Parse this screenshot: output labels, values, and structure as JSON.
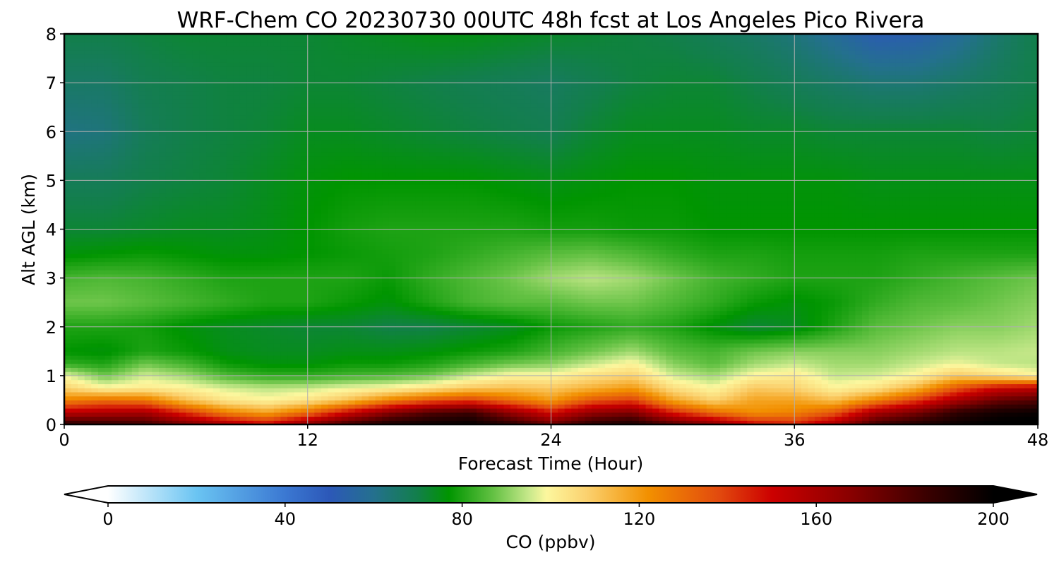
{
  "chart_data": {
    "type": "heatmap",
    "title": "WRF-Chem CO  20230730 00UTC 48h fcst at Los Angeles Pico Rivera",
    "xlabel": "Forecast Time (Hour)",
    "ylabel": "Alt AGL (km)",
    "xlim": [
      0,
      48
    ],
    "ylim": [
      0,
      8
    ],
    "xticks": [
      "0",
      "12",
      "24",
      "36",
      "48"
    ],
    "yticks": [
      "0",
      "1",
      "2",
      "3",
      "4",
      "5",
      "6",
      "7",
      "8"
    ],
    "grid": true,
    "colorbar": {
      "label": "CO  (ppbv)",
      "range": [
        0,
        200
      ],
      "ticks": [
        "0",
        "40",
        "80",
        "120",
        "160",
        "200"
      ],
      "extend": "both",
      "stops": [
        {
          "v": 0,
          "c": "#ffffff"
        },
        {
          "v": 20,
          "c": "#6ac4f2"
        },
        {
          "v": 40,
          "c": "#3b78d2"
        },
        {
          "v": 50,
          "c": "#2c58b8"
        },
        {
          "v": 60,
          "c": "#24708e"
        },
        {
          "v": 70,
          "c": "#127f4a"
        },
        {
          "v": 77,
          "c": "#009500"
        },
        {
          "v": 87,
          "c": "#63c143"
        },
        {
          "v": 95,
          "c": "#c6e88a"
        },
        {
          "v": 99,
          "c": "#fcf79e"
        },
        {
          "v": 108,
          "c": "#fbd270"
        },
        {
          "v": 122,
          "c": "#f29000"
        },
        {
          "v": 138,
          "c": "#e24a0e"
        },
        {
          "v": 150,
          "c": "#cc0000"
        },
        {
          "v": 168,
          "c": "#880000"
        },
        {
          "v": 185,
          "c": "#3a0000"
        },
        {
          "v": 200,
          "c": "#000000"
        }
      ]
    },
    "times_h": [
      0,
      2,
      4,
      6,
      8,
      10,
      12,
      14,
      16,
      18,
      20,
      22,
      24,
      26,
      28,
      30,
      32,
      34,
      36,
      38,
      40,
      42,
      44,
      46,
      48
    ],
    "levels_km": [
      0,
      0.25,
      0.5,
      0.75,
      1,
      1.25,
      1.5,
      2,
      2.5,
      3,
      3.5,
      4,
      5,
      6,
      7,
      8
    ],
    "values_ppbv": [
      [
        190,
        188,
        185,
        172,
        160,
        150,
        168,
        185,
        195,
        198,
        200,
        190,
        175,
        190,
        195,
        180,
        168,
        150,
        145,
        160,
        185,
        192,
        198,
        202,
        202
      ],
      [
        155,
        158,
        160,
        142,
        125,
        118,
        130,
        150,
        168,
        180,
        185,
        165,
        148,
        165,
        170,
        145,
        130,
        122,
        125,
        135,
        160,
        172,
        188,
        195,
        198
      ],
      [
        125,
        130,
        128,
        112,
        103,
        100,
        104,
        112,
        125,
        135,
        140,
        130,
        120,
        135,
        140,
        118,
        108,
        118,
        118,
        112,
        125,
        140,
        160,
        175,
        180
      ],
      [
        108,
        100,
        102,
        100,
        96,
        94,
        95,
        98,
        100,
        104,
        110,
        112,
        110,
        115,
        120,
        105,
        99,
        110,
        108,
        100,
        104,
        115,
        135,
        150,
        155
      ],
      [
        98,
        88,
        96,
        92,
        85,
        82,
        82,
        84,
        85,
        88,
        95,
        100,
        100,
        105,
        108,
        96,
        92,
        100,
        102,
        95,
        96,
        100,
        110,
        105,
        100
      ],
      [
        82,
        80,
        88,
        84,
        78,
        76,
        76,
        78,
        78,
        80,
        84,
        88,
        90,
        95,
        100,
        90,
        86,
        92,
        95,
        92,
        92,
        95,
        98,
        95,
        94
      ],
      [
        77,
        76,
        80,
        78,
        75,
        74,
        74,
        75,
        75,
        76,
        78,
        80,
        84,
        88,
        92,
        86,
        84,
        88,
        90,
        90,
        90,
        92,
        94,
        94,
        95
      ],
      [
        80,
        80,
        79,
        76,
        74,
        73,
        72,
        72,
        70,
        70,
        72,
        74,
        78,
        80,
        82,
        80,
        76,
        72,
        74,
        80,
        86,
        88,
        90,
        90,
        92
      ],
      [
        88,
        88,
        86,
        84,
        82,
        80,
        80,
        78,
        76,
        80,
        84,
        86,
        86,
        88,
        88,
        85,
        82,
        78,
        76,
        78,
        82,
        85,
        86,
        88,
        90
      ],
      [
        84,
        85,
        84,
        82,
        80,
        80,
        80,
        80,
        78,
        82,
        85,
        88,
        92,
        94,
        92,
        88,
        84,
        82,
        80,
        80,
        80,
        82,
        84,
        86,
        88
      ],
      [
        76,
        77,
        78,
        77,
        76,
        76,
        77,
        78,
        79,
        80,
        82,
        84,
        86,
        87,
        85,
        82,
        80,
        80,
        79,
        79,
        79,
        80,
        80,
        80,
        80
      ],
      [
        72,
        72,
        73,
        74,
        74,
        75,
        77,
        79,
        80,
        80,
        80,
        80,
        79,
        79,
        78,
        78,
        77,
        77,
        77,
        77,
        77,
        77,
        77,
        77,
        77
      ],
      [
        68,
        68,
        70,
        71,
        72,
        74,
        76,
        77,
        77,
        77,
        77,
        76,
        75,
        76,
        77,
        77,
        76,
        76,
        76,
        76,
        75,
        75,
        75,
        75,
        75
      ],
      [
        62,
        63,
        68,
        70,
        71,
        72,
        74,
        74,
        73,
        72,
        71,
        70,
        69,
        72,
        74,
        74,
        74,
        73,
        73,
        72,
        72,
        72,
        72,
        71,
        72
      ],
      [
        66,
        66,
        69,
        70,
        71,
        71,
        72,
        72,
        71,
        70,
        69,
        68,
        67,
        69,
        71,
        72,
        72,
        70,
        68,
        66,
        64,
        64,
        66,
        68,
        70
      ],
      [
        70,
        70,
        71,
        72,
        72,
        72,
        72,
        73,
        74,
        75,
        75,
        74,
        73,
        72,
        71,
        70,
        68,
        66,
        63,
        58,
        52,
        53,
        58,
        65,
        70
      ]
    ]
  }
}
